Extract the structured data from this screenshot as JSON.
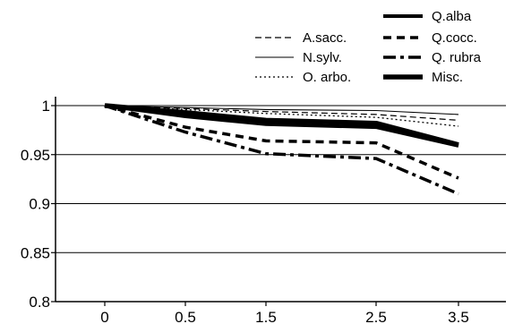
{
  "chart_data": {
    "type": "line",
    "title": "",
    "xlabel": "",
    "ylabel": "",
    "categories": [
      "0",
      "0.5",
      "1.5",
      "2.5",
      "3.5"
    ],
    "x_tick_labels": [
      "0",
      "0.5",
      "1.5",
      "2.5",
      "3.5"
    ],
    "y_tick_labels": [
      "0.8",
      "0.85",
      "0.9",
      "0.95",
      "1"
    ],
    "ylim": [
      0.8,
      1.0
    ],
    "grid": "horizontal",
    "legend_position": "top-right",
    "series": [
      {
        "name": "A.sacc.",
        "style": "dashed",
        "values": [
          1.0,
          0.997,
          0.994,
          0.991,
          0.985
        ]
      },
      {
        "name": "N.sylv.",
        "style": "thin-solid",
        "values": [
          1.0,
          0.998,
          0.996,
          0.995,
          0.991
        ]
      },
      {
        "name": "O. arbo.",
        "style": "dotted",
        "values": [
          1.0,
          0.996,
          0.992,
          0.988,
          0.979
        ]
      },
      {
        "name": "Q.alba",
        "style": "thick-solid",
        "values": [
          1.0,
          0.989,
          0.981,
          0.978,
          0.959
        ]
      },
      {
        "name": "Q.cocc.",
        "style": "thick-dashed",
        "values": [
          1.0,
          0.978,
          0.964,
          0.962,
          0.926
        ]
      },
      {
        "name": "Q. rubra",
        "style": "thick-dash-dot",
        "values": [
          1.0,
          0.973,
          0.951,
          0.946,
          0.91
        ]
      },
      {
        "name": "Misc.",
        "style": "heavy-solid",
        "values": [
          1.0,
          0.993,
          0.985,
          0.982,
          0.96
        ]
      }
    ]
  }
}
